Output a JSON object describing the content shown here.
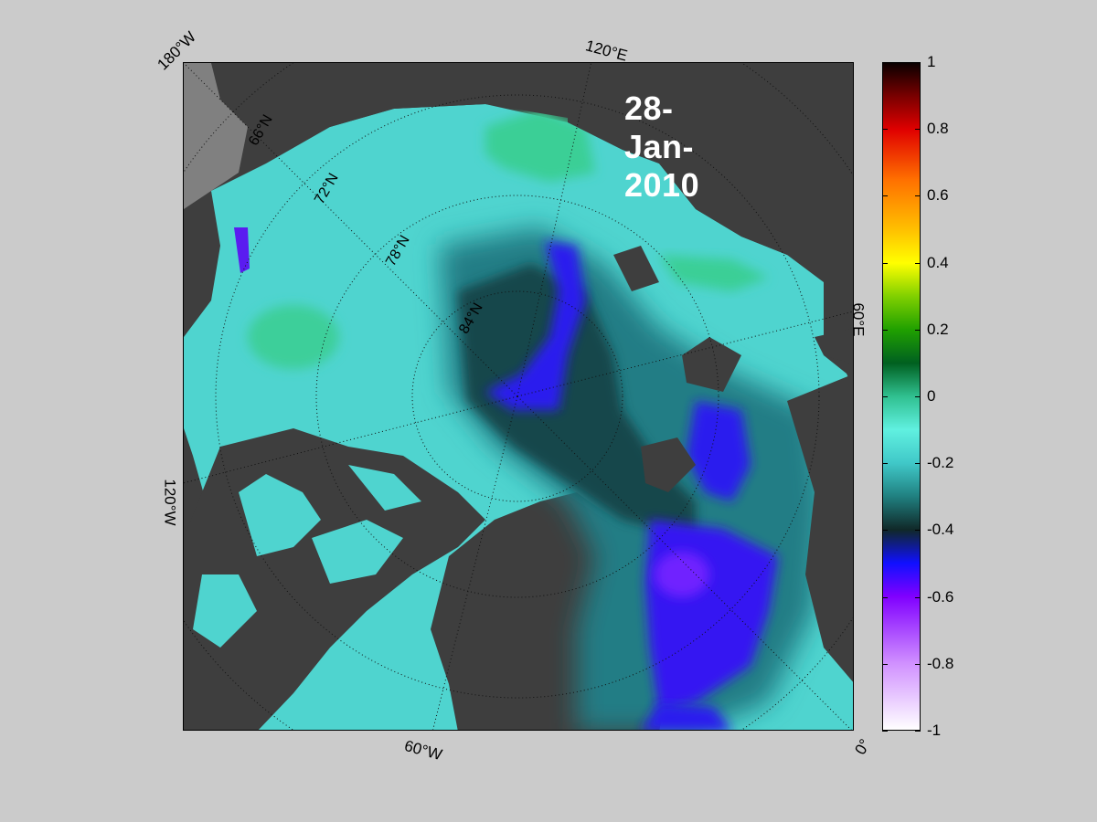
{
  "map": {
    "date": "28-Jan-2010",
    "lon_labels": {
      "lon_180w": "180°W",
      "lon_120e": "120°E",
      "lon_60e": "60°E",
      "lon_120w": "120°W",
      "lon_60w": "60°W",
      "lon_0": "0°"
    },
    "lat_labels": [
      "66°N",
      "72°N",
      "78°N",
      "84°N"
    ],
    "colors": {
      "land": "#3e3e3e",
      "coast_land": "#808080",
      "page_background": "#cbcbcb"
    }
  },
  "colorbar": {
    "ticks": [
      "1",
      "0.8",
      "0.6",
      "0.4",
      "0.2",
      "0",
      "-0.2",
      "-0.4",
      "-0.6",
      "-0.8",
      "-1"
    ],
    "range": [
      -1,
      1
    ],
    "stops": [
      {
        "value": 1.0,
        "color": "#0a0000"
      },
      {
        "value": 0.9,
        "color": "#7a0000"
      },
      {
        "value": 0.8,
        "color": "#e00000"
      },
      {
        "value": 0.65,
        "color": "#ff7000"
      },
      {
        "value": 0.5,
        "color": "#ffc000"
      },
      {
        "value": 0.4,
        "color": "#ffff00"
      },
      {
        "value": 0.3,
        "color": "#80d000"
      },
      {
        "value": 0.2,
        "color": "#20a000"
      },
      {
        "value": 0.1,
        "color": "#006020"
      },
      {
        "value": 0.0,
        "color": "#30c090"
      },
      {
        "value": -0.1,
        "color": "#60f0e0"
      },
      {
        "value": -0.2,
        "color": "#40c8c8"
      },
      {
        "value": -0.3,
        "color": "#208080"
      },
      {
        "value": -0.4,
        "color": "#102828"
      },
      {
        "value": -0.5,
        "color": "#1010ff"
      },
      {
        "value": -0.6,
        "color": "#8000ff"
      },
      {
        "value": -0.8,
        "color": "#d090ff"
      },
      {
        "value": -1.0,
        "color": "#ffffff"
      }
    ]
  }
}
